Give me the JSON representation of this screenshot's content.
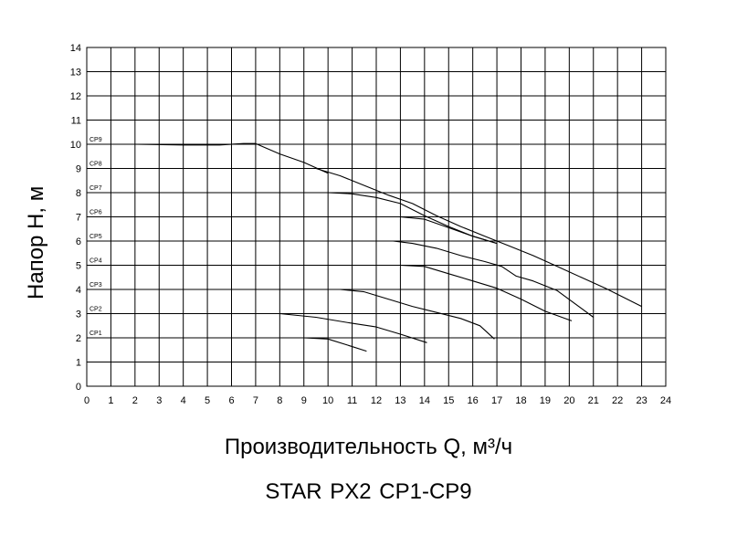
{
  "chart_data": {
    "type": "line",
    "xlabel": "Производительность Q, м³/ч",
    "ylabel": "Напор H, м",
    "subtitle": "STAR PX2    CP1-CP9",
    "xlim": [
      0,
      24
    ],
    "ylim": [
      0,
      14
    ],
    "xticks": [
      0,
      1,
      2,
      3,
      4,
      5,
      6,
      7,
      8,
      9,
      10,
      11,
      12,
      13,
      14,
      15,
      16,
      17,
      18,
      19,
      20,
      21,
      22,
      23,
      24
    ],
    "yticks": [
      0,
      1,
      2,
      3,
      4,
      5,
      6,
      7,
      8,
      9,
      10,
      11,
      12,
      13,
      14
    ],
    "grid": true,
    "series": [
      {
        "name": "CP1",
        "x": [
          0,
          9,
          10,
          10.8,
          11.6
        ],
        "y": [
          2,
          2,
          1.95,
          1.7,
          1.45
        ]
      },
      {
        "name": "CP2",
        "x": [
          0,
          8,
          9.5,
          11,
          12,
          13,
          14.1
        ],
        "y": [
          3,
          3,
          2.85,
          2.6,
          2.45,
          2.15,
          1.8
        ]
      },
      {
        "name": "CP3",
        "x": [
          0,
          10.5,
          11.5,
          12.5,
          13.5,
          14.5,
          15.5,
          16.3,
          16.9
        ],
        "y": [
          4,
          4,
          3.9,
          3.6,
          3.3,
          3.05,
          2.8,
          2.5,
          1.95
        ]
      },
      {
        "name": "CP4",
        "x": [
          13,
          14,
          15,
          16,
          16.5,
          17,
          18,
          19,
          20.1
        ],
        "y": [
          5,
          4.95,
          4.65,
          4.35,
          4.2,
          4.05,
          3.6,
          3.1,
          2.7
        ]
      },
      {
        "name": "CP5",
        "x": [
          0,
          12.7,
          13.5,
          14.5,
          15.5,
          16.5,
          17.2,
          17.8,
          18.5,
          19.5,
          21
        ],
        "y": [
          6,
          6,
          5.9,
          5.7,
          5.4,
          5.15,
          4.95,
          4.55,
          4.35,
          3.95,
          2.85
        ]
      },
      {
        "name": "CP6",
        "x": [
          0,
          12,
          13,
          14,
          15,
          16,
          17
        ],
        "y": [
          7,
          7,
          7,
          6.9,
          6.55,
          6.2,
          5.9
        ]
      },
      {
        "name": "CP7",
        "x": [
          10,
          11,
          12,
          13,
          14,
          15,
          16,
          17
        ],
        "y": [
          8,
          7.95,
          7.8,
          7.55,
          7.05,
          6.6,
          6.2,
          5.9
        ]
      },
      {
        "name": "CP8",
        "x": [
          0,
          9.5,
          10.5,
          11.5,
          12.5,
          13.5,
          14.5,
          15.5,
          16.5,
          17.5,
          18.5,
          19.5,
          20.5,
          21.5,
          23
        ],
        "y": [
          9,
          9,
          8.7,
          8.3,
          7.9,
          7.55,
          7.05,
          6.6,
          6.2,
          5.8,
          5.4,
          4.95,
          4.5,
          4.05,
          3.3
        ]
      },
      {
        "name": "CP9",
        "x": [
          0,
          2,
          4,
          5.5,
          6.5,
          7,
          8,
          9,
          10
        ],
        "y": [
          10,
          10,
          9.97,
          9.97,
          10.03,
          10.03,
          9.6,
          9.25,
          8.8
        ]
      }
    ]
  }
}
